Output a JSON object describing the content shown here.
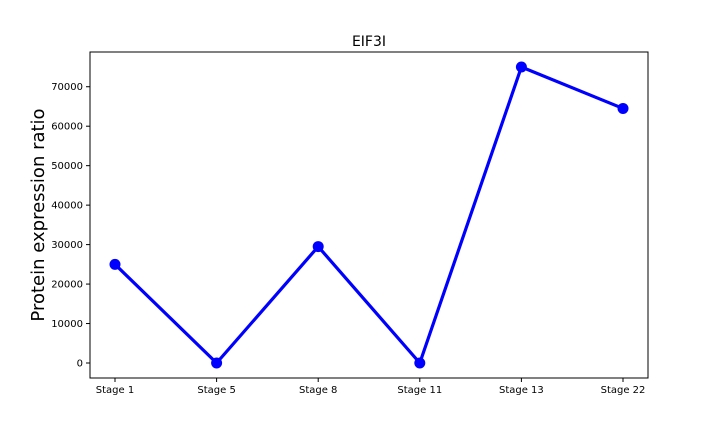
{
  "chart_data": {
    "type": "line",
    "title": "EIF3I",
    "xlabel": "",
    "ylabel": "Protein expression ratio",
    "categories": [
      "Stage 1",
      "Stage 5",
      "Stage 8",
      "Stage 11",
      "Stage 13",
      "Stage 22"
    ],
    "series": [
      {
        "values": [
          25000,
          0,
          29500,
          0,
          75000,
          64500
        ]
      }
    ],
    "ylim": [
      -3800,
      78800
    ],
    "yticks": [
      0,
      10000,
      20000,
      30000,
      40000,
      50000,
      60000,
      70000
    ],
    "grid": false,
    "line_color": "#0000ff"
  }
}
